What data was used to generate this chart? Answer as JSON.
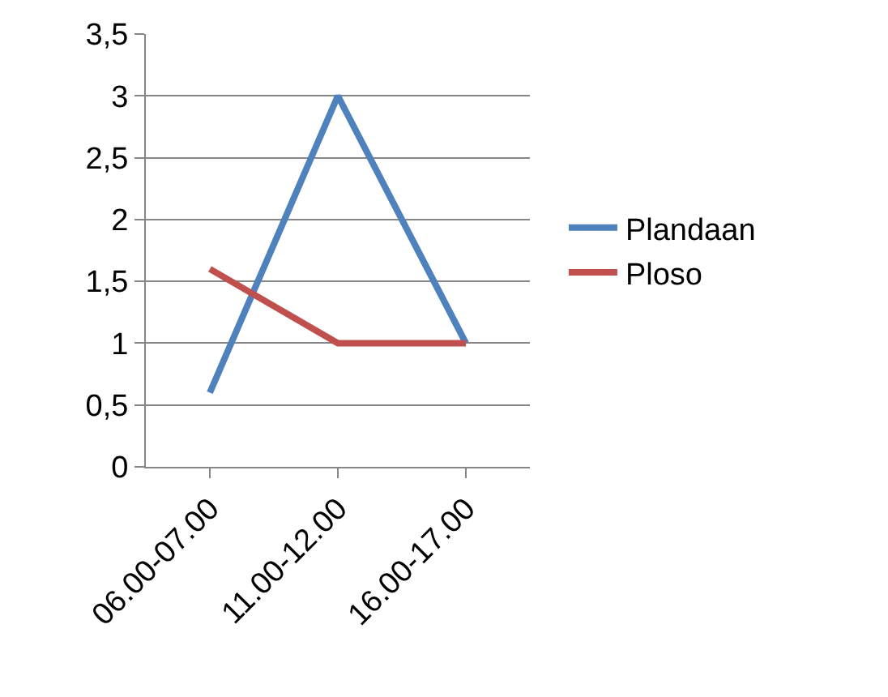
{
  "chart_data": {
    "type": "line",
    "categories": [
      "06.00-07.00",
      "11.00-12.00",
      "16.00-17.00"
    ],
    "series": [
      {
        "name": "Plandaan",
        "color": "#4f81bd",
        "values": [
          0.6,
          3,
          1
        ]
      },
      {
        "name": "Ploso",
        "color": "#c0504d",
        "values": [
          1.6,
          1,
          1
        ]
      }
    ],
    "ylim": [
      0,
      3.5
    ],
    "yticks": [
      0,
      {
        "value": 0.5,
        "label": "0,5"
      },
      1,
      {
        "value": 1.5,
        "label": "1,5"
      },
      2,
      {
        "value": 2.5,
        "label": "2,5"
      },
      3,
      {
        "value": 3.5,
        "label": "3,5"
      }
    ],
    "grid": "y",
    "legend": "right",
    "marker": "none",
    "line_style": "solid"
  }
}
